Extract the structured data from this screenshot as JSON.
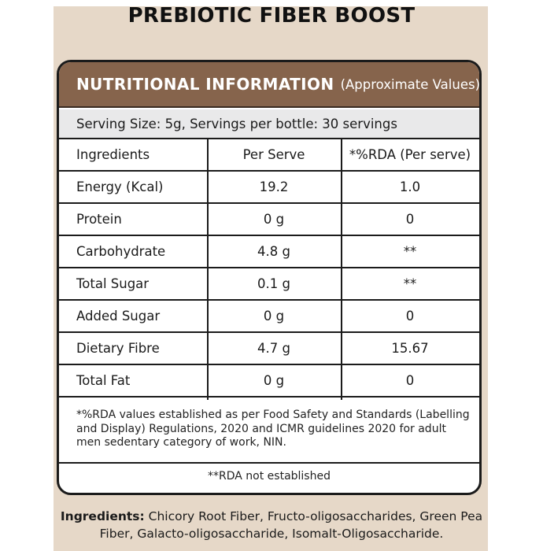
{
  "title": "PREBIOTIC FIBER BOOST",
  "panel": {
    "header_main": "NUTRITIONAL INFORMATION",
    "header_sub": "(Approximate Values)",
    "serving": "Serving Size: 5g, Servings per bottle: 30 servings",
    "columns": [
      "Ingredients",
      "Per Serve",
      "*%RDA (Per serve)"
    ],
    "rows": [
      {
        "name": "Energy (Kcal)",
        "per_serve": "19.2",
        "rda": "1.0"
      },
      {
        "name": "Protein",
        "per_serve": "0 g",
        "rda": "0"
      },
      {
        "name": "Carbohydrate",
        "per_serve": "4.8 g",
        "rda": "**"
      },
      {
        "name": "Total Sugar",
        "per_serve": "0.1 g",
        "rda": "**"
      },
      {
        "name": "Added Sugar",
        "per_serve": "0 g",
        "rda": "0"
      },
      {
        "name": "Dietary Fibre",
        "per_serve": "4.7 g",
        "rda": "15.67"
      },
      {
        "name": "Total Fat",
        "per_serve": "0 g",
        "rda": "0"
      }
    ],
    "footnote": "*%RDA values established as per Food Safety and Standards (Labelling and Display) Regulations, 2020 and ICMR guidelines 2020 for adult men sedentary category of work, NIN.",
    "rda_note": "**RDA not established"
  },
  "ingredients": {
    "label": "Ingredients:",
    "text": " Chicory Root Fiber, Fructo-oligosaccharides, Green Pea Fiber, Galacto-oligosaccharide, Isomalt-Oligosaccharide."
  },
  "colors": {
    "background": "#e6d8c8",
    "header": "#86644c",
    "serving_band": "#e9e9ea",
    "border": "#1b1b1b"
  }
}
